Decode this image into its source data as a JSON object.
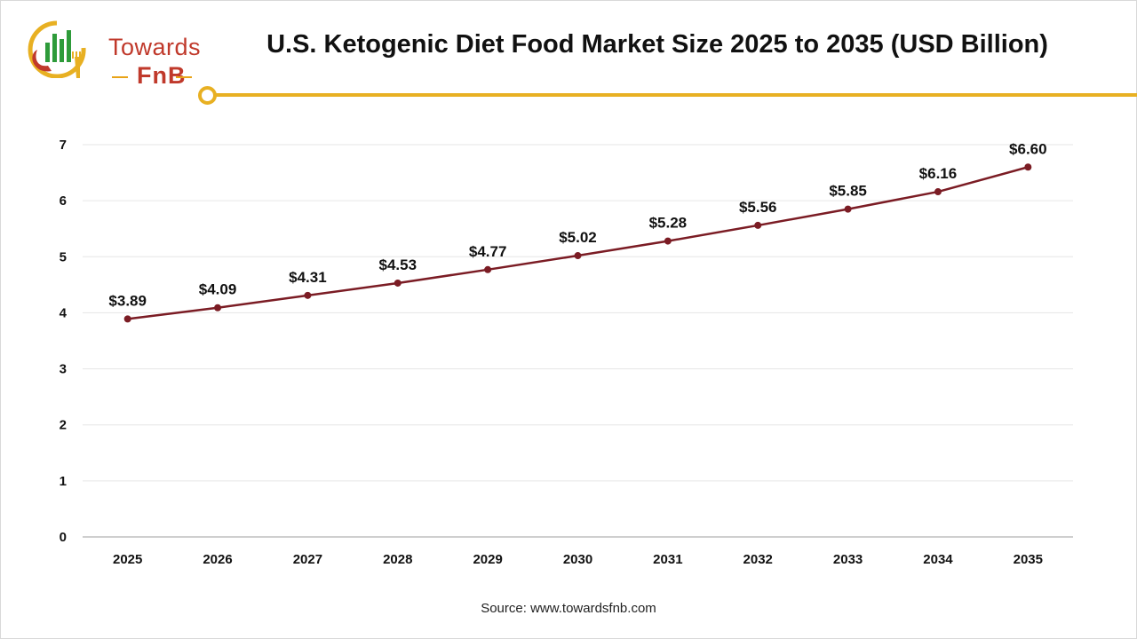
{
  "brand": {
    "name_line1": "Towards",
    "name_line2": "FnB",
    "colors": {
      "red": "#c0392b",
      "green": "#2e9b3a",
      "gold": "#e8b022"
    }
  },
  "title": "U.S. Ketogenic Diet Food Market Size 2025 to 2035 (USD Billion)",
  "source": "Source: www.towardsfnb.com",
  "chart_data": {
    "type": "line",
    "title": "U.S. Ketogenic Diet Food Market Size 2025 to 2035 (USD Billion)",
    "xlabel": "",
    "ylabel": "",
    "categories": [
      "2025",
      "2026",
      "2027",
      "2028",
      "2029",
      "2030",
      "2031",
      "2032",
      "2033",
      "2034",
      "2035"
    ],
    "values": [
      3.89,
      4.09,
      4.31,
      4.53,
      4.77,
      5.02,
      5.28,
      5.56,
      5.85,
      6.16,
      6.6
    ],
    "data_labels": [
      "$3.89",
      "$4.09",
      "$4.31",
      "$4.53",
      "$4.77",
      "$5.02",
      "$5.28",
      "$5.56",
      "$5.85",
      "$6.16",
      "$6.60"
    ],
    "ylim": [
      0,
      7
    ],
    "yticks": [
      "0",
      "1",
      "2",
      "3",
      "4",
      "5",
      "6",
      "7"
    ],
    "grid": true,
    "legend": "none",
    "line_color": "#7b1c24"
  }
}
